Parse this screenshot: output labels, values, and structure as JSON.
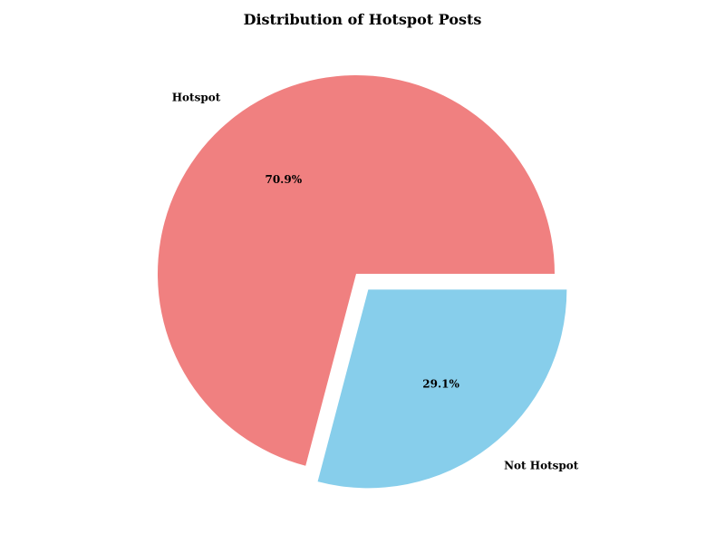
{
  "chart_data": {
    "type": "pie",
    "title": "Distribution of Hotspot Posts",
    "slices": [
      {
        "label": "Hotspot",
        "value": 70.9,
        "pct_label": "70.9%",
        "color": "#F08080",
        "explode": 0
      },
      {
        "label": "Not Hotspot",
        "value": 29.1,
        "pct_label": "29.1%",
        "color": "#87CEEB",
        "explode": 0.1
      }
    ],
    "start_angle_deg": 0,
    "direction": "counterclockwise",
    "legend": "none"
  }
}
